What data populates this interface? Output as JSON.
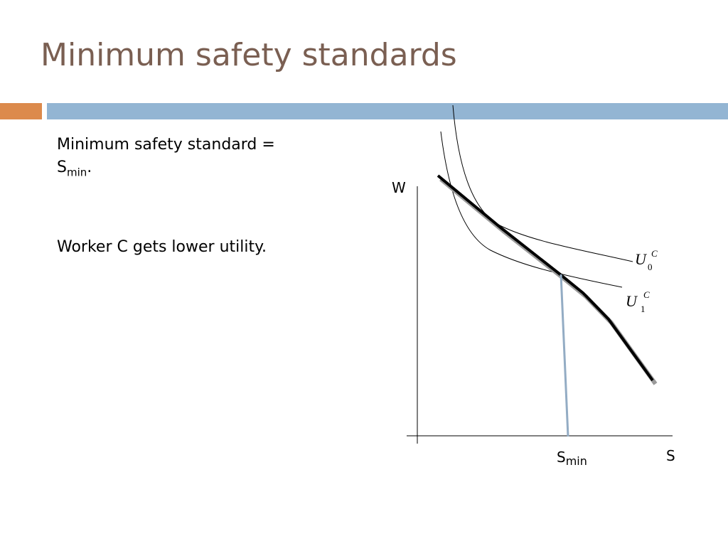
{
  "slide": {
    "title": "Minimum safety standards",
    "colors": {
      "title": "#7a5f52",
      "accent_bar": "#dc8a4c",
      "header_bar": "#93b5d3",
      "min_line": "#93acc4"
    },
    "bullets": {
      "line1_main": "Minimum safety standard = ",
      "line1_s": "S",
      "line1_sub": "min",
      "line1_end": ".",
      "line2": "Worker C gets lower utility."
    }
  },
  "diagram": {
    "y_axis_label": "W",
    "x_axis_label": "S",
    "smin_label": "S",
    "smin_sub": "min",
    "curves": [
      {
        "name": "U",
        "sub": "0",
        "sup": "C"
      },
      {
        "name": "U",
        "sub": "1",
        "sup": "C"
      }
    ]
  }
}
